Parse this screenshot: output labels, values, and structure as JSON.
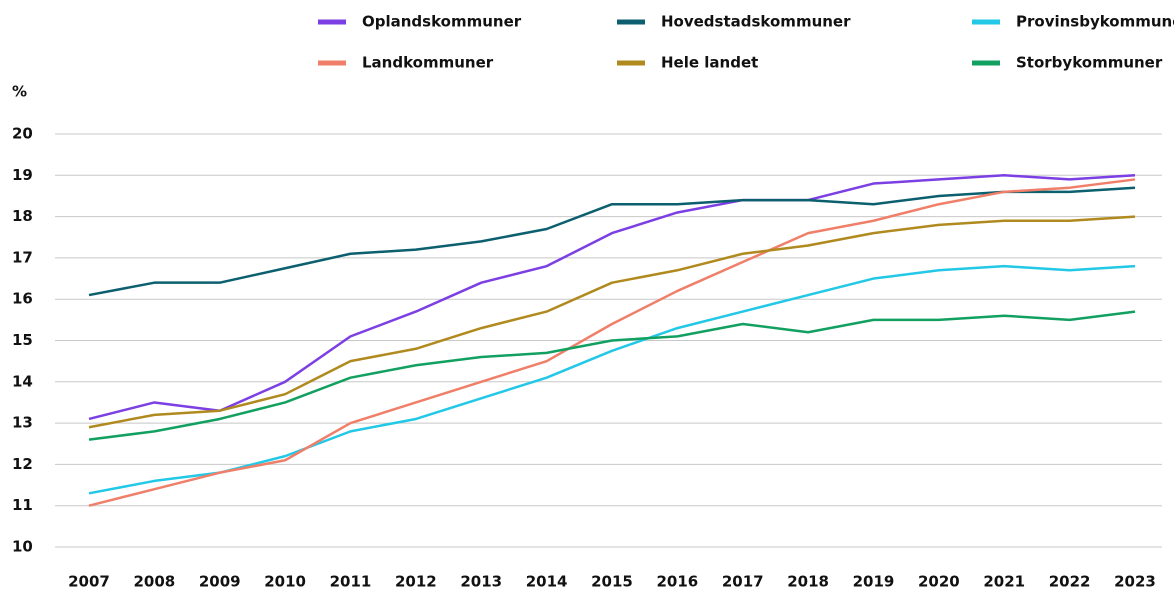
{
  "chart_data": {
    "type": "line",
    "y_label": "%",
    "categories": [
      "2007",
      "2008",
      "2009",
      "2010",
      "2011",
      "2012",
      "2013",
      "2014",
      "2015",
      "2016",
      "2017",
      "2018",
      "2019",
      "2020",
      "2021",
      "2022",
      "2023"
    ],
    "series": [
      {
        "name": "Oplandskommuner",
        "color": "#7b3fe4",
        "values": [
          13.1,
          13.5,
          13.3,
          14.0,
          15.1,
          15.7,
          16.4,
          16.8,
          17.6,
          18.1,
          18.4,
          18.4,
          18.8,
          18.9,
          19.0,
          18.9,
          19.0
        ]
      },
      {
        "name": "Hovedstadskommuner",
        "color": "#0b5f6e",
        "values": [
          16.1,
          16.4,
          16.4,
          16.75,
          17.1,
          17.2,
          17.4,
          17.7,
          18.3,
          18.3,
          18.4,
          18.4,
          18.3,
          18.5,
          18.6,
          18.6,
          18.7
        ]
      },
      {
        "name": "Provinsbykommuner",
        "color": "#22c8e6",
        "values": [
          11.3,
          11.6,
          11.8,
          12.2,
          12.8,
          13.1,
          13.6,
          14.1,
          14.75,
          15.3,
          15.7,
          16.1,
          16.5,
          16.7,
          16.8,
          16.7,
          16.8
        ]
      },
      {
        "name": "Landkommuner",
        "color": "#f07f6a",
        "values": [
          11.0,
          11.4,
          11.8,
          12.1,
          13.0,
          13.5,
          14.0,
          14.5,
          15.4,
          16.2,
          16.9,
          17.6,
          17.9,
          18.3,
          18.6,
          18.7,
          18.9
        ]
      },
      {
        "name": "Hele landet",
        "color": "#b08a1e",
        "values": [
          12.9,
          13.2,
          13.3,
          13.7,
          14.5,
          14.8,
          15.3,
          15.7,
          16.4,
          16.7,
          17.1,
          17.3,
          17.6,
          17.8,
          17.9,
          17.9,
          18.0
        ]
      },
      {
        "name": "Storbykommuner",
        "color": "#12a060",
        "values": [
          12.6,
          12.8,
          13.1,
          13.5,
          14.1,
          14.4,
          14.6,
          14.7,
          15.0,
          15.1,
          15.4,
          15.2,
          15.5,
          15.5,
          15.6,
          15.5,
          15.7
        ]
      }
    ],
    "ylim": [
      10,
      20
    ],
    "yticks": [
      10,
      11,
      12,
      13,
      14,
      15,
      16,
      17,
      18,
      19,
      20
    ],
    "grid": true
  }
}
